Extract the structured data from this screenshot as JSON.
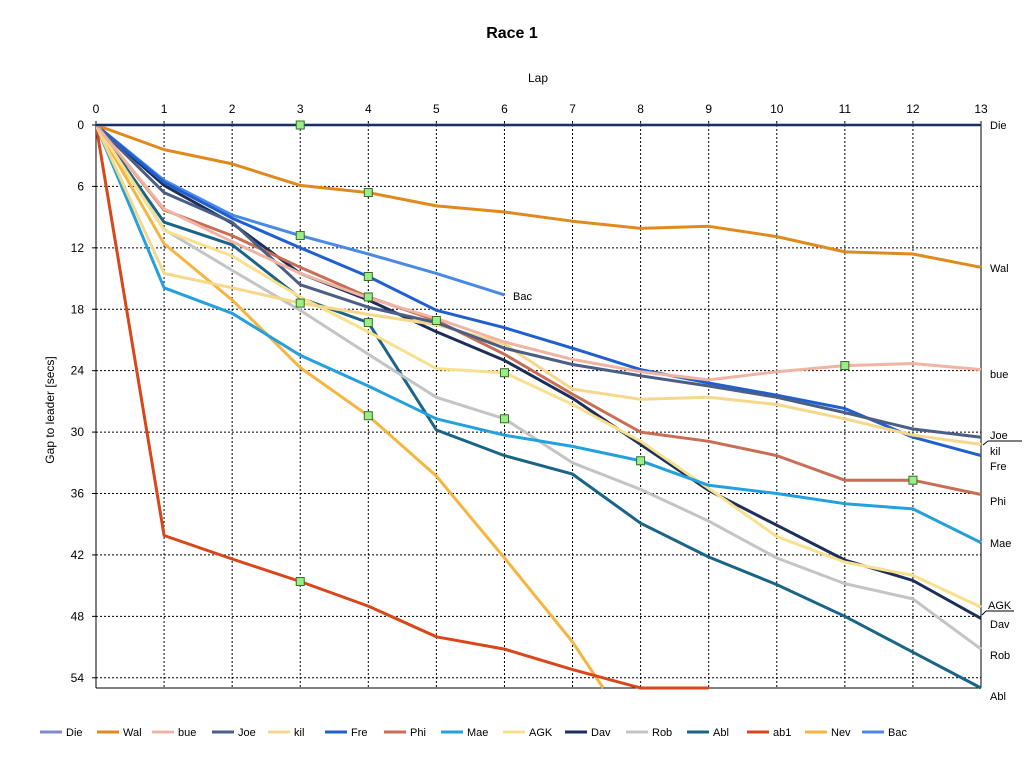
{
  "chart_data": {
    "type": "line",
    "title": "Race 1",
    "xlabel": "Lap",
    "ylabel": "Gap to leader [secs]",
    "x_ticks": [
      0,
      1,
      2,
      3,
      4,
      5,
      6,
      7,
      8,
      9,
      10,
      11,
      12,
      13
    ],
    "y_ticks": [
      0,
      6,
      12,
      18,
      24,
      30,
      36,
      42,
      48,
      54
    ],
    "xlim": [
      0,
      13
    ],
    "ylim": [
      0,
      55
    ],
    "y_inverted": true,
    "x_axis_position": "top",
    "grid": true,
    "legend_position": "bottom",
    "series": [
      {
        "name": "Die",
        "color": "#7b8cc8",
        "x": [
          0,
          1,
          2,
          3,
          4,
          5,
          6,
          7,
          8,
          9,
          10,
          11,
          12,
          13
        ],
        "y": [
          0,
          0,
          0,
          0,
          0,
          0,
          0,
          0,
          0,
          0,
          0,
          0,
          0,
          0
        ],
        "end_label": "Die"
      },
      {
        "name": "Wal",
        "color": "#e08a1e",
        "x": [
          0,
          1,
          2,
          3,
          4,
          5,
          6,
          7,
          8,
          9,
          10,
          11,
          12,
          13
        ],
        "y": [
          0,
          2.4,
          3.8,
          5.9,
          6.6,
          7.9,
          8.5,
          9.4,
          10.1,
          9.9,
          10.9,
          12.4,
          12.6,
          13.9
        ],
        "end_label": "Wal"
      },
      {
        "name": "bue",
        "color": "#f0b4a4",
        "x": [
          0,
          1,
          2,
          3,
          4,
          5,
          6,
          7,
          8,
          9,
          10,
          11,
          12,
          13
        ],
        "y": [
          0,
          8.2,
          11.4,
          14.5,
          16.9,
          18.9,
          21.2,
          22.9,
          24.1,
          24.9,
          24.1,
          23.5,
          23.3,
          23.9
        ],
        "end_label": "bue"
      },
      {
        "name": "Joe",
        "color": "#4a5e86",
        "x": [
          0,
          1,
          2,
          3,
          4,
          5,
          6,
          7,
          8,
          9,
          10,
          11,
          12,
          13
        ],
        "y": [
          0,
          6.6,
          9.5,
          15.6,
          17.8,
          19.3,
          21.8,
          23.4,
          24.5,
          25.5,
          26.6,
          28.1,
          29.7,
          30.5
        ],
        "end_label": "Joe"
      },
      {
        "name": "kil",
        "color": "#f6d88c",
        "x": [
          0,
          1,
          2,
          3,
          4,
          5,
          6,
          7,
          8,
          9,
          10,
          11,
          12,
          13
        ],
        "y": [
          0,
          14.5,
          15.9,
          17.4,
          18.5,
          19.5,
          21.4,
          25.8,
          26.8,
          26.6,
          27.3,
          28.7,
          30.3,
          31.2
        ],
        "end_label": "kil"
      },
      {
        "name": "Fre",
        "color": "#1f5fcf",
        "x": [
          0,
          1,
          2,
          3,
          4,
          5,
          6,
          7,
          8,
          9,
          10,
          11,
          12,
          13
        ],
        "y": [
          0,
          5.6,
          9.1,
          12.0,
          14.8,
          18.1,
          19.8,
          21.8,
          23.9,
          25.2,
          26.4,
          27.7,
          30.5,
          32.3
        ],
        "end_label": "Fre"
      },
      {
        "name": "Phi",
        "color": "#c86e54",
        "x": [
          0,
          1,
          2,
          3,
          4,
          5,
          6,
          7,
          8,
          9,
          10,
          11,
          12,
          13
        ],
        "y": [
          0,
          8.3,
          10.8,
          13.9,
          16.8,
          19.1,
          22.4,
          26.3,
          30.0,
          30.9,
          32.3,
          34.7,
          34.7,
          36.1
        ],
        "end_label": "Phi"
      },
      {
        "name": "Mae",
        "color": "#24a0dc",
        "x": [
          0,
          1,
          2,
          3,
          4,
          5,
          6,
          7,
          8,
          9,
          10,
          11,
          12,
          13
        ],
        "y": [
          0,
          15.9,
          18.4,
          22.5,
          25.5,
          28.7,
          30.3,
          31.4,
          32.8,
          35.2,
          36.0,
          37.0,
          37.5,
          40.8
        ],
        "end_label": "Mae"
      },
      {
        "name": "AGK",
        "color": "#f8e08c",
        "x": [
          0,
          1,
          2,
          3,
          4,
          5,
          6,
          7,
          8,
          9,
          10,
          11,
          12,
          13
        ],
        "y": [
          0,
          10.3,
          12.8,
          16.8,
          20.2,
          23.8,
          24.2,
          27.3,
          30.9,
          35.5,
          40.2,
          42.7,
          44.0,
          47.1
        ],
        "end_label": "AGK"
      },
      {
        "name": "Dav",
        "color": "#1c2f5a",
        "x": [
          0,
          1,
          2,
          3,
          4,
          5,
          6,
          7,
          8,
          9,
          10,
          11,
          12,
          13
        ],
        "y": [
          0,
          5.9,
          9.6,
          14.5,
          17.1,
          20.2,
          23.0,
          26.7,
          31.2,
          35.7,
          39.1,
          42.5,
          44.5,
          48.2
        ],
        "end_label": "Dav"
      },
      {
        "name": "Rob",
        "color": "#c4c4c4",
        "x": [
          0,
          1,
          2,
          3,
          4,
          5,
          6,
          7,
          8,
          9,
          10,
          11,
          12,
          13
        ],
        "y": [
          0,
          10.2,
          14.2,
          18.1,
          22.4,
          26.6,
          28.7,
          33.0,
          35.6,
          38.7,
          42.3,
          44.8,
          46.3,
          51.2
        ],
        "end_label": "Rob"
      },
      {
        "name": "Abl",
        "color": "#1a6488",
        "x": [
          0,
          1,
          2,
          3,
          4,
          5,
          6,
          7,
          8,
          9,
          10,
          11,
          12,
          13
        ],
        "y": [
          0,
          9.5,
          11.7,
          16.9,
          19.3,
          29.8,
          32.3,
          34.1,
          38.9,
          42.2,
          44.9,
          48.0,
          51.5,
          55.0
        ],
        "end_label": "Abl"
      },
      {
        "name": "ab1",
        "color": "#d8461a",
        "x": [
          0,
          1,
          2,
          3,
          4,
          5,
          6,
          7,
          8,
          9
        ],
        "y": [
          0,
          40.1,
          42.4,
          44.6,
          47.0,
          50.0,
          51.2,
          53.2,
          55.0,
          55.0
        ],
        "end_label": ""
      },
      {
        "name": "Nev",
        "color": "#f4b640",
        "x": [
          0,
          1,
          2,
          3,
          4,
          5,
          6,
          7,
          7.45
        ],
        "y": [
          0,
          11.6,
          17.1,
          23.7,
          28.4,
          34.3,
          42.3,
          50.5,
          55.0
        ],
        "end_label": ""
      },
      {
        "name": "Bac",
        "color": "#4a8ae6",
        "x": [
          0,
          1,
          2,
          3,
          4,
          5,
          6
        ],
        "y": [
          0,
          5.4,
          8.8,
          10.8,
          12.6,
          14.5,
          16.6
        ],
        "end_label": "Bac"
      }
    ],
    "pit_markers": [
      {
        "x": 3,
        "y": 0
      },
      {
        "x": 4,
        "y": 6.6
      },
      {
        "x": 3,
        "y": 10.8
      },
      {
        "x": 4,
        "y": 14.8
      },
      {
        "x": 4,
        "y": 16.8
      },
      {
        "x": 3,
        "y": 17.4
      },
      {
        "x": 4,
        "y": 19.3
      },
      {
        "x": 5,
        "y": 19.1
      },
      {
        "x": 6,
        "y": 24.2
      },
      {
        "x": 4,
        "y": 28.4
      },
      {
        "x": 6,
        "y": 28.7
      },
      {
        "x": 8,
        "y": 32.8
      },
      {
        "x": 11,
        "y": 23.5
      },
      {
        "x": 12,
        "y": 34.7
      },
      {
        "x": 3,
        "y": 44.6
      }
    ]
  }
}
